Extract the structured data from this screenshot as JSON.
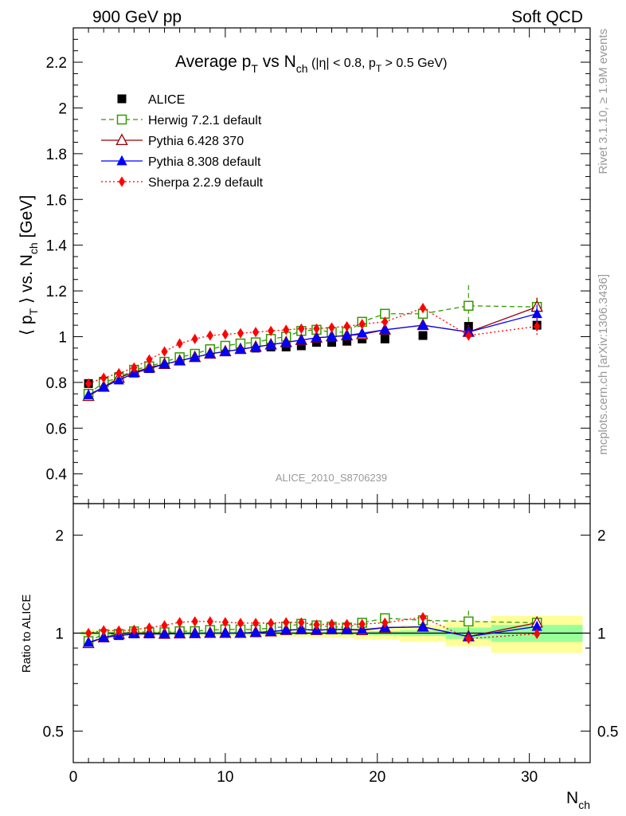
{
  "header": {
    "left": "900 GeV pp",
    "right": "Soft QCD"
  },
  "side_text": {
    "top": "Rivet 3.1.10, ≥ 1.9M events",
    "bottom": "mcplots.cern.ch [arXiv:1306.3436]"
  },
  "watermark": "ALICE_2010_S8706239",
  "chart_data": [
    {
      "type": "scatter",
      "title": "Average p_T vs N_ch (|η| < 0.8, p_T > 0.5 GeV)",
      "title_parts": {
        "t1": "Average p",
        "s1": "T",
        "t2": " vs N",
        "s2": "ch",
        "t3": " (|η| < 0.8, p",
        "s3": "T",
        "t4": " > 0.5 GeV)"
      },
      "ylabel": "⟨ p_T ⟩ vs. N_ch [GeV]",
      "ylabel_parts": {
        "t1": "⟨ p",
        "s1": "T",
        "t2": " ⟩ vs. N",
        "s2": "ch",
        "t3": " [GeV]"
      },
      "xlim": [
        0,
        34
      ],
      "ylim": [
        0.27,
        2.35
      ],
      "y_ticks": [
        0.4,
        0.6,
        0.8,
        1,
        1.2,
        1.4,
        1.6,
        1.8,
        2,
        2.2
      ],
      "y_tick_labels": [
        "0.4",
        "0.6",
        "0.8",
        "1",
        "1.2",
        "1.4",
        "1.6",
        "1.8",
        "2",
        "2.2"
      ],
      "legend_position": "top-left",
      "x": [
        1,
        2,
        3,
        4,
        5,
        6,
        7,
        8,
        9,
        10,
        11,
        12,
        13,
        14,
        15,
        16,
        17,
        18,
        19,
        20.5,
        23,
        26,
        30.5
      ],
      "series": [
        {
          "name": "ALICE",
          "color": "#000000",
          "marker": "square-filled",
          "line": "none",
          "values": [
            0.795,
            0.805,
            0.825,
            0.845,
            0.865,
            0.885,
            0.898,
            0.912,
            0.925,
            0.935,
            0.945,
            0.95,
            0.955,
            0.955,
            0.96,
            0.975,
            0.975,
            0.98,
            0.99,
            0.99,
            1.005,
            1.045,
            1.05
          ],
          "errors": [
            0.01,
            0.01,
            0.01,
            0.01,
            0.01,
            0.01,
            0.01,
            0.01,
            0.01,
            0.01,
            0.01,
            0.01,
            0.01,
            0.01,
            0.01,
            0.01,
            0.01,
            0.01,
            0.01,
            0.01,
            0.012,
            0.015,
            0.015
          ]
        },
        {
          "name": "Herwig 7.2.1 default",
          "color": "#339900",
          "marker": "square-open",
          "line": "dashed",
          "values": [
            0.75,
            0.8,
            0.82,
            0.855,
            0.87,
            0.89,
            0.91,
            0.925,
            0.945,
            0.96,
            0.97,
            0.975,
            0.99,
            1.0,
            1.025,
            1.03,
            1.02,
            1.02,
            1.065,
            1.1,
            1.1,
            1.135,
            1.13
          ],
          "errors": [
            0.006,
            0.006,
            0.006,
            0.006,
            0.006,
            0.006,
            0.006,
            0.006,
            0.006,
            0.006,
            0.006,
            0.006,
            0.006,
            0.006,
            0.008,
            0.008,
            0.008,
            0.01,
            0.01,
            0.012,
            0.02,
            0.09,
            0.04
          ]
        },
        {
          "name": "Pythia 6.428 370",
          "color": "#990000",
          "marker": "triangle-open",
          "line": "solid",
          "values": [
            0.74,
            0.78,
            0.82,
            0.845,
            0.865,
            0.88,
            0.895,
            0.91,
            0.925,
            0.935,
            0.945,
            0.955,
            0.965,
            0.975,
            0.985,
            0.995,
            1.0,
            1.005,
            1.01,
            1.03,
            1.05,
            1.02,
            1.13
          ],
          "errors": [
            0.005,
            0.005,
            0.005,
            0.005,
            0.005,
            0.005,
            0.005,
            0.005,
            0.005,
            0.005,
            0.005,
            0.005,
            0.005,
            0.005,
            0.006,
            0.006,
            0.006,
            0.008,
            0.008,
            0.01,
            0.012,
            0.02,
            0.04
          ]
        },
        {
          "name": "Pythia 8.308 default",
          "color": "#0000ff",
          "marker": "triangle-filled",
          "line": "solid",
          "values": [
            0.745,
            0.78,
            0.81,
            0.84,
            0.86,
            0.88,
            0.895,
            0.91,
            0.925,
            0.935,
            0.945,
            0.955,
            0.965,
            0.975,
            0.985,
            0.995,
            1.0,
            1.005,
            1.015,
            1.03,
            1.05,
            1.02,
            1.1
          ],
          "errors": [
            0.005,
            0.005,
            0.005,
            0.005,
            0.005,
            0.005,
            0.005,
            0.005,
            0.005,
            0.005,
            0.005,
            0.005,
            0.005,
            0.005,
            0.006,
            0.006,
            0.006,
            0.008,
            0.008,
            0.01,
            0.012,
            0.02,
            0.04
          ]
        },
        {
          "name": "Sherpa 2.2.9 default",
          "color": "#ff0000",
          "marker": "diamond-filled",
          "line": "dotted",
          "values": [
            0.795,
            0.82,
            0.84,
            0.865,
            0.9,
            0.935,
            0.97,
            0.99,
            1.005,
            1.01,
            1.015,
            1.02,
            1.025,
            1.03,
            1.035,
            1.035,
            1.04,
            1.045,
            1.055,
            1.065,
            1.125,
            1.005,
            1.045
          ],
          "errors": [
            0.005,
            0.005,
            0.005,
            0.005,
            0.005,
            0.005,
            0.005,
            0.005,
            0.005,
            0.005,
            0.005,
            0.005,
            0.005,
            0.005,
            0.006,
            0.006,
            0.006,
            0.008,
            0.008,
            0.01,
            0.02,
            0.02,
            0.04
          ]
        }
      ]
    },
    {
      "type": "scatter",
      "ylabel": "Ratio to ALICE",
      "xlabel": "N_ch",
      "xlabel_parts": {
        "t1": "N",
        "s1": "ch"
      },
      "xlim": [
        0,
        34
      ],
      "ylim": [
        0.4,
        2.5
      ],
      "y_scale": "log",
      "x_ticks": [
        0,
        10,
        20,
        30
      ],
      "x_tick_labels": [
        "0",
        "10",
        "20",
        "30"
      ],
      "y_ticks": [
        0.5,
        1,
        2
      ],
      "y_tick_labels": [
        "0.5",
        "1",
        "2"
      ],
      "reference_line": 1,
      "data_uncertainty_bands": {
        "x_edges": [
          0.5,
          1.5,
          2.5,
          3.5,
          4.5,
          5.5,
          6.5,
          7.5,
          8.5,
          9.5,
          10.5,
          11.5,
          12.5,
          13.5,
          14.5,
          15.5,
          16.5,
          17.5,
          18.5,
          19.5,
          21.5,
          24.5,
          27.5,
          33.5
        ],
        "inner_color": "#99ff99",
        "outer_color": "#ffff99",
        "inner": [
          0.01,
          0.01,
          0.01,
          0.01,
          0.01,
          0.01,
          0.01,
          0.01,
          0.01,
          0.01,
          0.01,
          0.01,
          0.01,
          0.01,
          0.01,
          0.01,
          0.01,
          0.012,
          0.012,
          0.015,
          0.02,
          0.04,
          0.06
        ],
        "outer": [
          0.02,
          0.02,
          0.02,
          0.02,
          0.02,
          0.02,
          0.02,
          0.02,
          0.02,
          0.02,
          0.02,
          0.02,
          0.02,
          0.025,
          0.025,
          0.03,
          0.03,
          0.035,
          0.04,
          0.045,
          0.06,
          0.09,
          0.13
        ]
      },
      "series": [
        {
          "name": "Herwig 7.2.1 default",
          "values": [
            0.945,
            0.993,
            0.994,
            1.012,
            1.006,
            1.006,
            1.013,
            1.014,
            1.022,
            1.027,
            1.026,
            1.026,
            1.037,
            1.047,
            1.068,
            1.056,
            1.046,
            1.041,
            1.076,
            1.111,
            1.095,
            1.086,
            1.076
          ]
        },
        {
          "name": "Pythia 6.428 370",
          "values": [
            0.931,
            0.969,
            0.994,
            1.0,
            1.0,
            0.994,
            0.997,
            0.998,
            1.0,
            1.0,
            1.0,
            1.005,
            1.011,
            1.021,
            1.026,
            1.021,
            1.026,
            1.026,
            1.02,
            1.04,
            1.045,
            0.976,
            1.076
          ]
        },
        {
          "name": "Pythia 8.308 default",
          "values": [
            0.937,
            0.969,
            0.982,
            0.994,
            0.994,
            0.994,
            0.997,
            0.998,
            1.0,
            1.0,
            1.0,
            1.005,
            1.011,
            1.021,
            1.026,
            1.021,
            1.026,
            1.026,
            1.025,
            1.04,
            1.045,
            0.976,
            1.048
          ]
        },
        {
          "name": "Sherpa 2.2.9 default",
          "values": [
            1.0,
            1.019,
            1.018,
            1.024,
            1.04,
            1.056,
            1.08,
            1.086,
            1.086,
            1.08,
            1.074,
            1.074,
            1.073,
            1.079,
            1.078,
            1.062,
            1.067,
            1.066,
            1.066,
            1.076,
            1.119,
            0.962,
            0.995
          ]
        }
      ]
    }
  ]
}
